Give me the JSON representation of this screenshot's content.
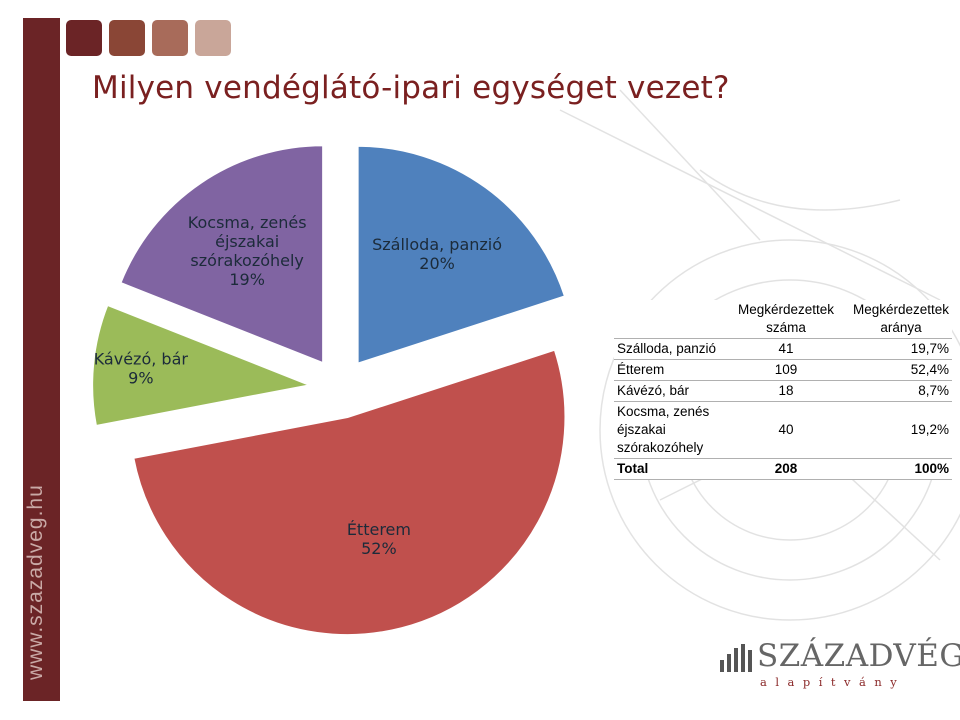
{
  "title": "Milyen vendéglátó-ipari egységet vezet?",
  "sidebar_url": "www.szazadveg.hu",
  "swatch_colors": [
    "#6b2426",
    "#8a4636",
    "#a86b5a",
    "#c9a699"
  ],
  "chart_data": {
    "type": "pie",
    "exploded": true,
    "slices": [
      {
        "label_lines": [
          "Szálloda, panzió"
        ],
        "percent_text": "20%",
        "value": 20,
        "color": "#4f81bd"
      },
      {
        "label_lines": [
          "Étterem"
        ],
        "percent_text": "52%",
        "value": 52,
        "color": "#c0504d"
      },
      {
        "label_lines": [
          "Kávézó, bár"
        ],
        "percent_text": "9%",
        "value": 9,
        "color": "#9bbb59"
      },
      {
        "label_lines": [
          "Kocsma, zenés",
          "éjszakai",
          "szórakozóhely"
        ],
        "percent_text": "19%",
        "value": 19,
        "color": "#8064a2"
      }
    ]
  },
  "table": {
    "headers": [
      "",
      "Megkérdezettek\nszáma",
      "Megkérdezettek\naránya"
    ],
    "rows": [
      {
        "category": "Szálloda, panzió",
        "count": "41",
        "share": "19,7%"
      },
      {
        "category": "Étterem",
        "count": "109",
        "share": "52,4%"
      },
      {
        "category": "Kávézó, bár",
        "count": "18",
        "share": "8,7%"
      },
      {
        "category": "Kocsma, zenés éjszakai szórakozóhely",
        "count": "40",
        "share": "19,2%"
      }
    ],
    "total": {
      "category": "Total",
      "count": "208",
      "share": "100%"
    }
  },
  "logo": {
    "name": "SZÁZADVÉG",
    "subtitle": "alapítvány"
  }
}
